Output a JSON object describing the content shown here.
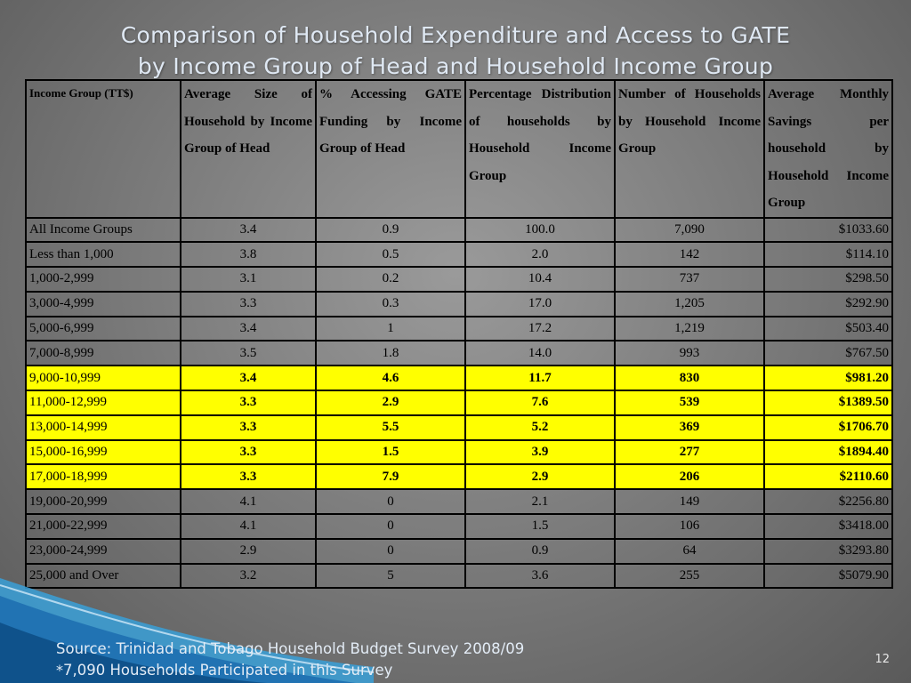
{
  "title": {
    "line1": "Comparison of Household Expenditure and Access to GATE",
    "line2": "by Income Group of Head and Household Income Group"
  },
  "table": {
    "headers": [
      "Income Group (TT$)",
      "Average Size of Household by Income Group of Head",
      "% Accessing GATE Funding by Income Group of Head",
      "Percentage Distribution of households by Household Income Group",
      "Number of Households by Household Income Group",
      "Average Monthly Savings per household by Household Income Group"
    ],
    "rows": [
      {
        "group": "All Income Groups",
        "size": "3.4",
        "gate": "0.9",
        "pct": "100.0",
        "num": "7,090",
        "savings": "$1033.60",
        "highlight": false
      },
      {
        "group": "Less than 1,000",
        "size": "3.8",
        "gate": "0.5",
        "pct": "2.0",
        "num": "142",
        "savings": "$114.10",
        "highlight": false
      },
      {
        "group": "1,000-2,999",
        "size": "3.1",
        "gate": "0.2",
        "pct": "10.4",
        "num": "737",
        "savings": "$298.50",
        "highlight": false
      },
      {
        "group": "3,000-4,999",
        "size": "3.3",
        "gate": "0.3",
        "pct": "17.0",
        "num": "1,205",
        "savings": "$292.90",
        "highlight": false
      },
      {
        "group": "5,000-6,999",
        "size": "3.4",
        "gate": "1",
        "pct": "17.2",
        "num": "1,219",
        "savings": "$503.40",
        "highlight": false
      },
      {
        "group": "7,000-8,999",
        "size": "3.5",
        "gate": "1.8",
        "pct": "14.0",
        "num": "993",
        "savings": "$767.50",
        "highlight": false
      },
      {
        "group": "9,000-10,999",
        "size": "3.4",
        "gate": "4.6",
        "pct": "11.7",
        "num": "830",
        "savings": "$981.20",
        "highlight": true
      },
      {
        "group": "11,000-12,999",
        "size": "3.3",
        "gate": "2.9",
        "pct": "7.6",
        "num": "539",
        "savings": "$1389.50",
        "highlight": true
      },
      {
        "group": "13,000-14,999",
        "size": "3.3",
        "gate": "5.5",
        "pct": "5.2",
        "num": "369",
        "savings": "$1706.70",
        "highlight": true
      },
      {
        "group": "15,000-16,999",
        "size": "3.3",
        "gate": "1.5",
        "pct": "3.9",
        "num": "277",
        "savings": "$1894.40",
        "highlight": true
      },
      {
        "group": "17,000-18,999",
        "size": "3.3",
        "gate": "7.9",
        "pct": "2.9",
        "num": "206",
        "savings": "$2110.60",
        "highlight": true
      },
      {
        "group": "19,000-20,999",
        "size": "4.1",
        "gate": "0",
        "pct": "2.1",
        "num": "149",
        "savings": "$2256.80",
        "highlight": false
      },
      {
        "group": "21,000-22,999",
        "size": "4.1",
        "gate": "0",
        "pct": "1.5",
        "num": "106",
        "savings": "$3418.00",
        "highlight": false
      },
      {
        "group": "23,000-24,999",
        "size": "2.9",
        "gate": "0",
        "pct": "0.9",
        "num": "64",
        "savings": "$3293.80",
        "highlight": false
      },
      {
        "group": "25,000 and Over",
        "size": "3.2",
        "gate": "5",
        "pct": "3.6",
        "num": "255",
        "savings": "$5079.90",
        "highlight": false
      }
    ]
  },
  "footer": {
    "source": "Source: Trinidad and Tobago Household Budget Survey 2008/09",
    "note_prefix": "*",
    "note": "7,090 Households Participated in this Survey"
  },
  "page_number": "12",
  "colors": {
    "highlight": "#ffff00",
    "title_text": "#dfe8f3",
    "swoosh_blue": "#1e88c8"
  }
}
